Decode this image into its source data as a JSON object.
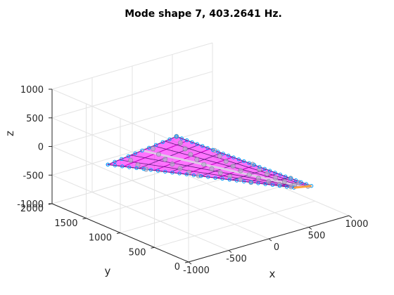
{
  "chart_data": {
    "type": "scatter",
    "subtype": "3d-mesh-mode-shape",
    "title": "Mode shape 7, 403.2641 Hz.",
    "xlabel": "x",
    "ylabel": "y",
    "zlabel": "z",
    "xlim": [
      -1000,
      1000
    ],
    "ylim": [
      0,
      2000
    ],
    "zlim": [
      -1000,
      1000
    ],
    "x_ticks": [
      "-1000",
      "-500",
      "0",
      "500",
      "1000"
    ],
    "y_ticks": [
      "0",
      "500",
      "1000",
      "1500",
      "2000"
    ],
    "z_ticks": [
      "-1000",
      "-500",
      "0",
      "500",
      "1000"
    ],
    "grid": true,
    "structure_outline": [
      {
        "x": -300,
        "y": 1000,
        "z": 400
      },
      {
        "x": -900,
        "y": 1300,
        "z": 0
      },
      {
        "x": 400,
        "y": 100,
        "z": -320
      },
      {
        "x": 600,
        "y": 80,
        "z": -360
      }
    ],
    "colors": [
      "#c000c0",
      "#ff00ff",
      "#00a0ff",
      "#ffa040",
      "#b0b0c8"
    ]
  }
}
